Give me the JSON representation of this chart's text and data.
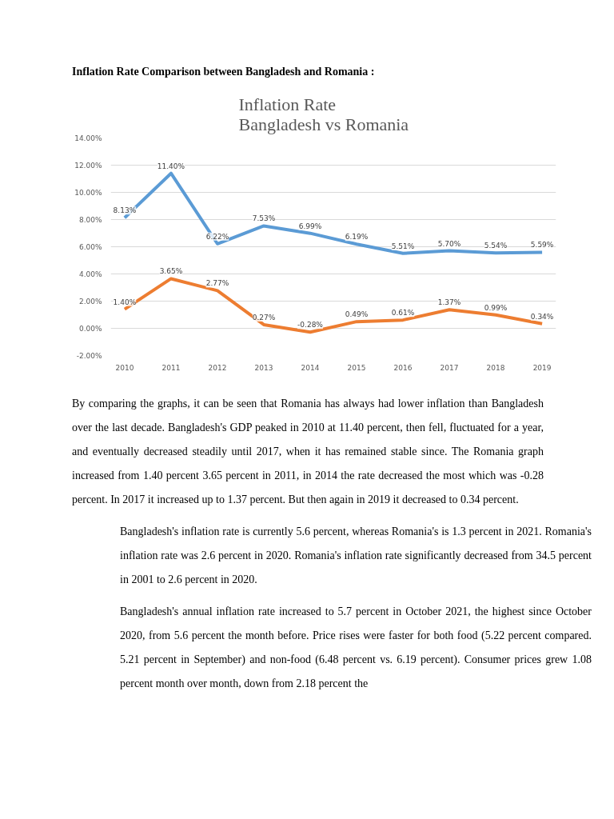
{
  "chart_data": {
    "type": "line",
    "title": "Inflation Rate\nBangladesh vs Romania",
    "categories": [
      "2010",
      "2011",
      "2012",
      "2013",
      "2014",
      "2015",
      "2016",
      "2017",
      "2018",
      "2019"
    ],
    "series": [
      {
        "color": "#5b9bd5",
        "values": [
          8.13,
          11.4,
          6.22,
          7.53,
          6.99,
          6.19,
          5.51,
          5.7,
          5.54,
          5.59
        ],
        "value_labels": [
          "8.13%",
          "11.40%",
          "6.22%",
          "7.53%",
          "6.99%",
          "6.19%",
          "5.51%",
          "5.70%",
          "5.54%",
          "5.59%"
        ]
      },
      {
        "color": "#ed7d31",
        "values": [
          1.4,
          3.65,
          2.77,
          0.27,
          -0.28,
          0.49,
          0.61,
          1.37,
          0.99,
          0.34
        ],
        "value_labels": [
          "1.40%",
          "3.65%",
          "2.77%",
          "0.27%",
          "-0.28%",
          "0.49%",
          "0.61%",
          "1.37%",
          "0.99%",
          "0.34%"
        ]
      }
    ],
    "ylim": [
      -2,
      14
    ],
    "yticks": [
      {
        "value": -2,
        "label": "-2.00%"
      },
      {
        "value": 0,
        "label": "0.00%"
      },
      {
        "value": 2,
        "label": "2.00%"
      },
      {
        "value": 4,
        "label": "4.00%"
      },
      {
        "value": 6,
        "label": "6.00%"
      },
      {
        "value": 8,
        "label": "8.00%"
      },
      {
        "value": 10,
        "label": "10.00%"
      },
      {
        "value": 12,
        "label": "12.00%"
      },
      {
        "value": 14,
        "label": "14.00%"
      }
    ],
    "grid": "y",
    "marker": "none",
    "line_style": "solid",
    "annotations": [
      "Inflation Rate Comparison between Bangladesh and Romania :",
      "By comparing the graphs, it can be seen that Romania has always had lower inflation than Bangladesh over the last decade. Bangladesh's GDP peaked in 2010 at 11.40 percent, then fell, fluctuated for a year, and eventually decreased steadily until 2017, when it has remained stable since. The Romania graph increased from 1.40 percent 3.65 percent in 2011, in 2014 the rate decreased the most which was -0.28 percent. In 2017 it increased up to 1.37 percent. But then again in 2019 it decreased to 0.34 percent.",
      "Bangladesh's inflation rate is currently 5.6 percent, whereas Romania's is 1.3 percent in 2021. Romania's inflation rate was 2.6 percent in 2020. Romania's inflation rate significantly decreased from 34.5 percent in 2001 to 2.6 percent in 2020.",
      "Bangladesh's annual inflation rate increased to 5.7 percent in October 2021, the highest since October 2020, from 5.6 percent the month before. Price rises were faster for both food (5.22 percent compared. 5.21 percent in September) and non-food (6.48 percent vs. 6.19 percent). Consumer prices grew 1.08 percent month over month, down from 2.18 percent the"
    ]
  }
}
